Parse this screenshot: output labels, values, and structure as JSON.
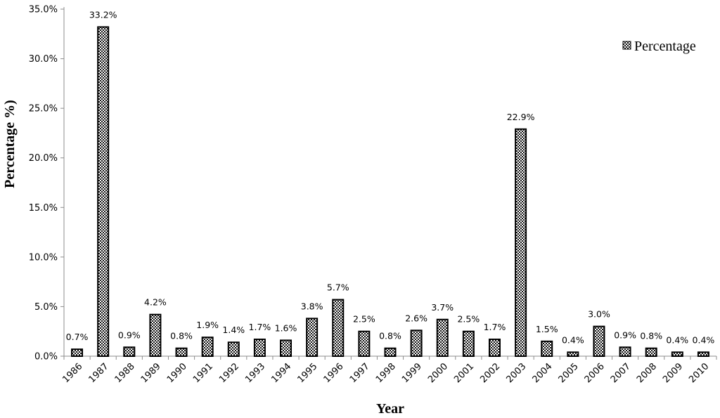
{
  "chart_data": {
    "type": "bar",
    "xlabel": "Year",
    "ylabel": "Percentage %)",
    "ylim": [
      0,
      35
    ],
    "y_tick_step": 5,
    "y_tick_format": "0.0%",
    "grid": false,
    "legend": {
      "position": "top-right",
      "entries": [
        "Percentage"
      ]
    },
    "fill_pattern": "checkered",
    "categories": [
      "1986",
      "1987",
      "1988",
      "1989",
      "1990",
      "1991",
      "1992",
      "1993",
      "1994",
      "1995",
      "1996",
      "1997",
      "1998",
      "1999",
      "2000",
      "2001",
      "2002",
      "2003",
      "2004",
      "2005",
      "2006",
      "2007",
      "2008",
      "2009",
      "2010"
    ],
    "series": [
      {
        "name": "Percentage",
        "values": [
          0.7,
          33.2,
          0.9,
          4.2,
          0.8,
          1.9,
          1.4,
          1.7,
          1.6,
          3.8,
          5.7,
          2.5,
          0.8,
          2.6,
          3.7,
          2.5,
          1.7,
          22.9,
          1.5,
          0.4,
          3.0,
          0.9,
          0.8,
          0.4,
          0.4
        ],
        "labels": [
          "0.7%",
          "33.2%",
          "0.9%",
          "4.2%",
          "0.8%",
          "1.9%",
          "1.4%",
          "1.7%",
          "1.6%",
          "3.8%",
          "5.7%",
          "2.5%",
          "0.8%",
          "2.6%",
          "3.7%",
          "2.5%",
          "1.7%",
          "22.9%",
          "1.5%",
          "0.4%",
          "3.0%",
          "0.9%",
          "0.8%",
          "0.4%",
          "0.4%"
        ]
      }
    ]
  }
}
